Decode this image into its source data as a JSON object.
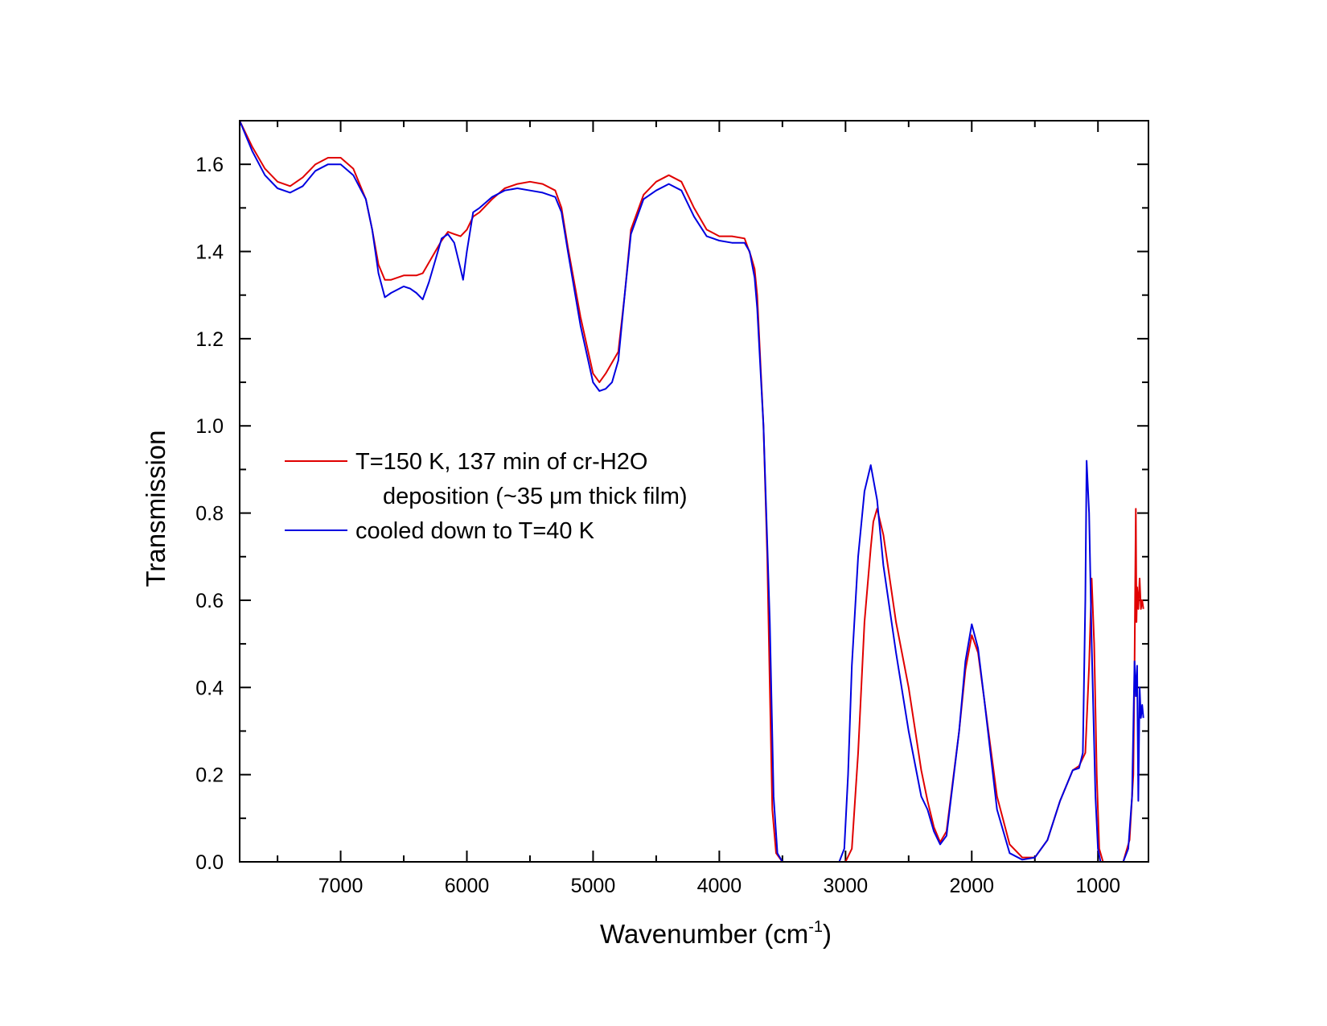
{
  "chart_data": {
    "type": "line",
    "title": "",
    "xlabel": "Wavenumber (cm",
    "xlabel_sup": "-1",
    "xlabel_close": ")",
    "ylabel": "Transmission",
    "xlim": [
      7800,
      600
    ],
    "ylim": [
      0.0,
      1.7
    ],
    "x_reversed": true,
    "x_ticks": [
      7000,
      6000,
      5000,
      4000,
      3000,
      2000,
      1000
    ],
    "x_tick_labels": [
      "7000",
      "6000",
      "5000",
      "4000",
      "3000",
      "2000",
      "1000"
    ],
    "y_ticks": [
      0.0,
      0.2,
      0.4,
      0.6,
      0.8,
      1.0,
      1.2,
      1.4,
      1.6
    ],
    "y_tick_labels": [
      "0.0",
      "0.2",
      "0.4",
      "0.6",
      "0.8",
      "1.0",
      "1.2",
      "1.4",
      "1.6"
    ],
    "grid": false,
    "legend_position": "middle-left",
    "series": [
      {
        "name_lines": [
          "T=150 K, 137 min of cr-H2O",
          "deposition (~35 μm thick film)"
        ],
        "color": "#e00000",
        "points": [
          [
            7800,
            1.7
          ],
          [
            7700,
            1.64
          ],
          [
            7600,
            1.59
          ],
          [
            7500,
            1.56
          ],
          [
            7400,
            1.55
          ],
          [
            7300,
            1.57
          ],
          [
            7200,
            1.6
          ],
          [
            7100,
            1.615
          ],
          [
            7000,
            1.615
          ],
          [
            6900,
            1.59
          ],
          [
            6800,
            1.52
          ],
          [
            6750,
            1.45
          ],
          [
            6700,
            1.37
          ],
          [
            6650,
            1.335
          ],
          [
            6600,
            1.335
          ],
          [
            6500,
            1.345
          ],
          [
            6400,
            1.345
          ],
          [
            6350,
            1.35
          ],
          [
            6300,
            1.375
          ],
          [
            6200,
            1.425
          ],
          [
            6150,
            1.445
          ],
          [
            6100,
            1.44
          ],
          [
            6050,
            1.435
          ],
          [
            6000,
            1.45
          ],
          [
            5950,
            1.48
          ],
          [
            5900,
            1.49
          ],
          [
            5800,
            1.52
          ],
          [
            5700,
            1.545
          ],
          [
            5600,
            1.555
          ],
          [
            5500,
            1.56
          ],
          [
            5400,
            1.555
          ],
          [
            5300,
            1.54
          ],
          [
            5250,
            1.5
          ],
          [
            5200,
            1.41
          ],
          [
            5100,
            1.25
          ],
          [
            5000,
            1.12
          ],
          [
            4950,
            1.1
          ],
          [
            4900,
            1.12
          ],
          [
            4800,
            1.17
          ],
          [
            4750,
            1.3
          ],
          [
            4700,
            1.45
          ],
          [
            4600,
            1.53
          ],
          [
            4500,
            1.56
          ],
          [
            4400,
            1.575
          ],
          [
            4300,
            1.56
          ],
          [
            4200,
            1.5
          ],
          [
            4100,
            1.45
          ],
          [
            4000,
            1.435
          ],
          [
            3900,
            1.435
          ],
          [
            3800,
            1.43
          ],
          [
            3750,
            1.39
          ],
          [
            3720,
            1.36
          ],
          [
            3700,
            1.3
          ],
          [
            3650,
            1.0
          ],
          [
            3620,
            0.7
          ],
          [
            3600,
            0.4
          ],
          [
            3580,
            0.12
          ],
          [
            3550,
            0.02
          ],
          [
            3500,
            0.0
          ],
          [
            3000,
            0.0
          ],
          [
            2950,
            0.03
          ],
          [
            2900,
            0.25
          ],
          [
            2850,
            0.55
          ],
          [
            2800,
            0.72
          ],
          [
            2780,
            0.78
          ],
          [
            2750,
            0.81
          ],
          [
            2700,
            0.75
          ],
          [
            2600,
            0.55
          ],
          [
            2500,
            0.4
          ],
          [
            2400,
            0.21
          ],
          [
            2350,
            0.14
          ],
          [
            2300,
            0.08
          ],
          [
            2250,
            0.045
          ],
          [
            2200,
            0.07
          ],
          [
            2100,
            0.3
          ],
          [
            2050,
            0.44
          ],
          [
            2000,
            0.52
          ],
          [
            1950,
            0.48
          ],
          [
            1900,
            0.37
          ],
          [
            1800,
            0.15
          ],
          [
            1700,
            0.04
          ],
          [
            1600,
            0.01
          ],
          [
            1500,
            0.01
          ],
          [
            1400,
            0.05
          ],
          [
            1300,
            0.14
          ],
          [
            1200,
            0.21
          ],
          [
            1150,
            0.22
          ],
          [
            1100,
            0.25
          ],
          [
            1070,
            0.45
          ],
          [
            1050,
            0.65
          ],
          [
            1030,
            0.5
          ],
          [
            1010,
            0.2
          ],
          [
            990,
            0.03
          ],
          [
            960,
            0.0
          ],
          [
            800,
            0.0
          ],
          [
            750,
            0.05
          ],
          [
            720,
            0.2
          ],
          [
            710,
            0.45
          ],
          [
            700,
            0.81
          ],
          [
            695,
            0.55
          ],
          [
            690,
            0.63
          ],
          [
            680,
            0.58
          ],
          [
            670,
            0.65
          ],
          [
            660,
            0.58
          ],
          [
            650,
            0.6
          ],
          [
            640,
            0.58
          ]
        ]
      },
      {
        "name_lines": [
          "cooled down to T=40 K"
        ],
        "color": "#0000e0",
        "points": [
          [
            7800,
            1.7
          ],
          [
            7700,
            1.63
          ],
          [
            7600,
            1.575
          ],
          [
            7500,
            1.545
          ],
          [
            7400,
            1.535
          ],
          [
            7300,
            1.55
          ],
          [
            7200,
            1.585
          ],
          [
            7100,
            1.6
          ],
          [
            7000,
            1.6
          ],
          [
            6900,
            1.575
          ],
          [
            6800,
            1.52
          ],
          [
            6750,
            1.45
          ],
          [
            6700,
            1.35
          ],
          [
            6650,
            1.295
          ],
          [
            6600,
            1.305
          ],
          [
            6500,
            1.32
          ],
          [
            6450,
            1.315
          ],
          [
            6400,
            1.305
          ],
          [
            6350,
            1.29
          ],
          [
            6300,
            1.33
          ],
          [
            6250,
            1.38
          ],
          [
            6200,
            1.43
          ],
          [
            6150,
            1.44
          ],
          [
            6100,
            1.42
          ],
          [
            6050,
            1.36
          ],
          [
            6030,
            1.335
          ],
          [
            6000,
            1.4
          ],
          [
            5950,
            1.49
          ],
          [
            5900,
            1.5
          ],
          [
            5800,
            1.525
          ],
          [
            5700,
            1.54
          ],
          [
            5600,
            1.545
          ],
          [
            5500,
            1.54
          ],
          [
            5400,
            1.535
          ],
          [
            5300,
            1.525
          ],
          [
            5250,
            1.49
          ],
          [
            5200,
            1.4
          ],
          [
            5100,
            1.23
          ],
          [
            5000,
            1.1
          ],
          [
            4950,
            1.08
          ],
          [
            4900,
            1.085
          ],
          [
            4850,
            1.1
          ],
          [
            4800,
            1.15
          ],
          [
            4750,
            1.3
          ],
          [
            4700,
            1.44
          ],
          [
            4600,
            1.52
          ],
          [
            4500,
            1.54
          ],
          [
            4400,
            1.555
          ],
          [
            4300,
            1.54
          ],
          [
            4200,
            1.48
          ],
          [
            4100,
            1.435
          ],
          [
            4000,
            1.425
          ],
          [
            3900,
            1.42
          ],
          [
            3800,
            1.42
          ],
          [
            3760,
            1.4
          ],
          [
            3740,
            1.37
          ],
          [
            3720,
            1.34
          ],
          [
            3700,
            1.27
          ],
          [
            3650,
            1.0
          ],
          [
            3600,
            0.55
          ],
          [
            3570,
            0.15
          ],
          [
            3540,
            0.02
          ],
          [
            3500,
            0.0
          ],
          [
            3050,
            0.0
          ],
          [
            3010,
            0.03
          ],
          [
            2980,
            0.2
          ],
          [
            2950,
            0.45
          ],
          [
            2900,
            0.7
          ],
          [
            2850,
            0.85
          ],
          [
            2800,
            0.91
          ],
          [
            2750,
            0.83
          ],
          [
            2700,
            0.68
          ],
          [
            2600,
            0.48
          ],
          [
            2500,
            0.3
          ],
          [
            2400,
            0.15
          ],
          [
            2350,
            0.12
          ],
          [
            2300,
            0.07
          ],
          [
            2250,
            0.04
          ],
          [
            2200,
            0.06
          ],
          [
            2100,
            0.3
          ],
          [
            2050,
            0.46
          ],
          [
            2000,
            0.545
          ],
          [
            1950,
            0.49
          ],
          [
            1900,
            0.37
          ],
          [
            1800,
            0.12
          ],
          [
            1700,
            0.02
          ],
          [
            1600,
            0.005
          ],
          [
            1500,
            0.01
          ],
          [
            1400,
            0.05
          ],
          [
            1300,
            0.14
          ],
          [
            1200,
            0.21
          ],
          [
            1150,
            0.215
          ],
          [
            1120,
            0.25
          ],
          [
            1100,
            0.6
          ],
          [
            1090,
            0.92
          ],
          [
            1070,
            0.8
          ],
          [
            1050,
            0.5
          ],
          [
            1020,
            0.15
          ],
          [
            1000,
            0.03
          ],
          [
            980,
            0.0
          ],
          [
            800,
            0.0
          ],
          [
            760,
            0.03
          ],
          [
            730,
            0.15
          ],
          [
            710,
            0.46
          ],
          [
            700,
            0.38
          ],
          [
            690,
            0.45
          ],
          [
            680,
            0.14
          ],
          [
            670,
            0.4
          ],
          [
            660,
            0.33
          ],
          [
            650,
            0.36
          ],
          [
            640,
            0.33
          ]
        ]
      }
    ]
  }
}
